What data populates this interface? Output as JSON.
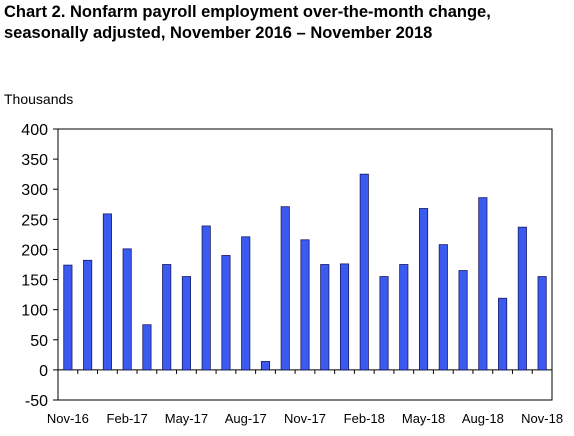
{
  "chart_data": {
    "type": "bar",
    "title_line1": "Chart 2. Nonfarm payroll employment over-the-month change,",
    "title_line2": "seasonally adjusted, November 2016 – November 2018",
    "ylabel": "Thousands",
    "xlabel": "",
    "ylim": [
      -50,
      400
    ],
    "yticks": [
      400,
      350,
      300,
      250,
      200,
      150,
      100,
      50,
      0,
      -50
    ],
    "grid": false,
    "legend": "none",
    "bar_color": "#3b5bf0",
    "bar_edge_color": "#1a1a66",
    "categories": [
      "Nov-16",
      "Dec-16",
      "Jan-17",
      "Feb-17",
      "Mar-17",
      "Apr-17",
      "May-17",
      "Jun-17",
      "Jul-17",
      "Aug-17",
      "Sep-17",
      "Oct-17",
      "Nov-17",
      "Dec-17",
      "Jan-18",
      "Feb-18",
      "Mar-18",
      "Apr-18",
      "May-18",
      "Jun-18",
      "Jul-18",
      "Aug-18",
      "Sep-18",
      "Oct-18",
      "Nov-18"
    ],
    "values": [
      174,
      182,
      259,
      201,
      75,
      175,
      155,
      239,
      190,
      221,
      14,
      271,
      216,
      175,
      176,
      325,
      155,
      175,
      268,
      208,
      165,
      286,
      119,
      237,
      155
    ],
    "xtick_labels": [
      "Nov-16",
      "Feb-17",
      "May-17",
      "Aug-17",
      "Nov-17",
      "Feb-18",
      "May-18",
      "Aug-18",
      "Nov-18"
    ]
  }
}
